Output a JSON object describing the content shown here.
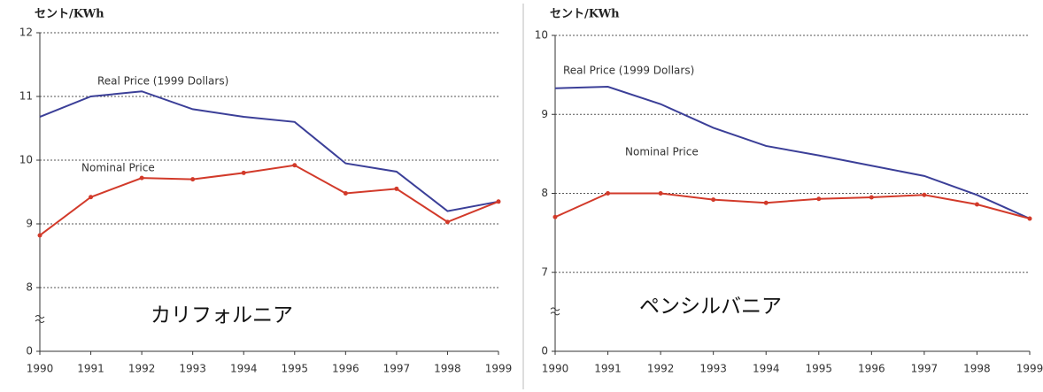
{
  "chart_data": [
    {
      "type": "line",
      "y_unit": "セント/KWh",
      "region": "カリフォルニア",
      "categories": [
        "1990",
        "1991",
        "1992",
        "1993",
        "1994",
        "1995",
        "1996",
        "1997",
        "1998",
        "1999"
      ],
      "series": [
        {
          "name": "Real Price (1999 Dollars)",
          "color": "#3b3f98",
          "values": [
            10.68,
            11.0,
            11.08,
            10.8,
            10.68,
            10.6,
            9.95,
            9.82,
            9.2,
            9.35
          ]
        },
        {
          "name": "Nominal Price",
          "color": "#d23a2a",
          "markers": true,
          "values": [
            8.82,
            9.42,
            9.72,
            9.7,
            9.8,
            9.92,
            9.48,
            9.55,
            9.03,
            9.35
          ]
        }
      ],
      "ylim": [
        0,
        12
      ],
      "ybreak": [
        0,
        7
      ],
      "yticks": [
        0,
        8,
        9,
        10,
        11,
        12
      ],
      "grid": true
    },
    {
      "type": "line",
      "y_unit": "セント/KWh",
      "region": "ペンシルバニア",
      "categories": [
        "1990",
        "1991",
        "1992",
        "1993",
        "1994",
        "1995",
        "1996",
        "1997",
        "1998",
        "1999"
      ],
      "series": [
        {
          "name": "Real Price (1999 Dollars)",
          "color": "#3b3f98",
          "values": [
            9.33,
            9.35,
            9.13,
            8.83,
            8.6,
            8.48,
            8.35,
            8.22,
            7.98,
            7.68
          ]
        },
        {
          "name": "Nominal Price",
          "color": "#d23a2a",
          "markers": true,
          "values": [
            7.7,
            8.0,
            8.0,
            7.92,
            7.88,
            7.93,
            7.95,
            7.98,
            7.86,
            7.68
          ]
        }
      ],
      "ylim": [
        0,
        10
      ],
      "ybreak": [
        0,
        6
      ],
      "yticks": [
        0,
        7,
        8,
        9,
        10
      ],
      "grid": true
    }
  ]
}
